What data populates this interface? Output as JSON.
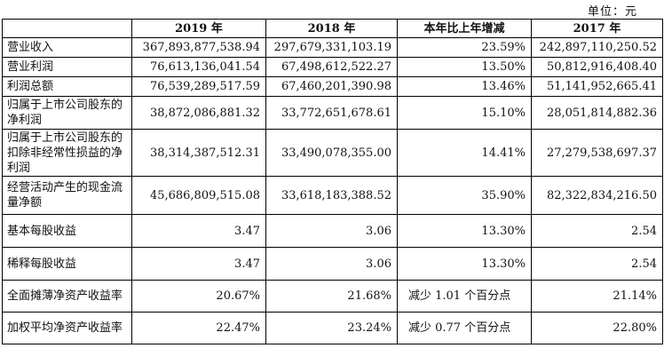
{
  "unit_label": "单位：元",
  "headers": [
    "",
    "2019 年",
    "2018 年",
    "本年比上年增减",
    "2017 年"
  ],
  "rows": [
    {
      "label": "营业收入",
      "v2019": "367,893,877,538.94",
      "v2018": "297,679,331,103.19",
      "change": "23.59%",
      "v2017": "242,897,110,250.52"
    },
    {
      "label": "营业利润",
      "v2019": "76,613,136,041.54",
      "v2018": "67,498,612,522.27",
      "change": "13.50%",
      "v2017": "50,812,916,408.40"
    },
    {
      "label": "利润总额",
      "v2019": "76,539,289,517.59",
      "v2018": "67,460,201,390.98",
      "change": "13.46%",
      "v2017": "51,141,952,665.41"
    },
    {
      "label": "归属于上市公司股东的净利润",
      "v2019": "38,872,086,881.32",
      "v2018": "33,772,651,678.61",
      "change": "15.10%",
      "v2017": "28,051,814,882.36"
    },
    {
      "label": "归属于上市公司股东的扣除非经常性损益的净利润",
      "v2019": "38,314,387,512.31",
      "v2018": "33,490,078,355.00",
      "change": "14.41%",
      "v2017": "27,279,538,697.37"
    },
    {
      "label": "经营活动产生的现金流量净额",
      "v2019": "45,686,809,515.08",
      "v2018": "33,618,183,388.52",
      "change": "35.90%",
      "v2017": "82,322,834,216.50"
    },
    {
      "label": "基本每股收益",
      "v2019": "3.47",
      "v2018": "3.06",
      "change": "13.30%",
      "v2017": "2.54"
    },
    {
      "label": "稀释每股收益",
      "v2019": "3.47",
      "v2018": "3.06",
      "change": "13.30%",
      "v2017": "2.54"
    },
    {
      "label": "全面摊薄净资产收益率",
      "v2019": "20.67%",
      "v2018": "21.68%",
      "change": "减少 1.01 个百分点",
      "v2017": "21.14%"
    },
    {
      "label": "加权平均净资产收益率",
      "v2019": "22.47%",
      "v2018": "23.24%",
      "change": "减少 0.77 个百分点",
      "v2017": "22.80%"
    }
  ]
}
